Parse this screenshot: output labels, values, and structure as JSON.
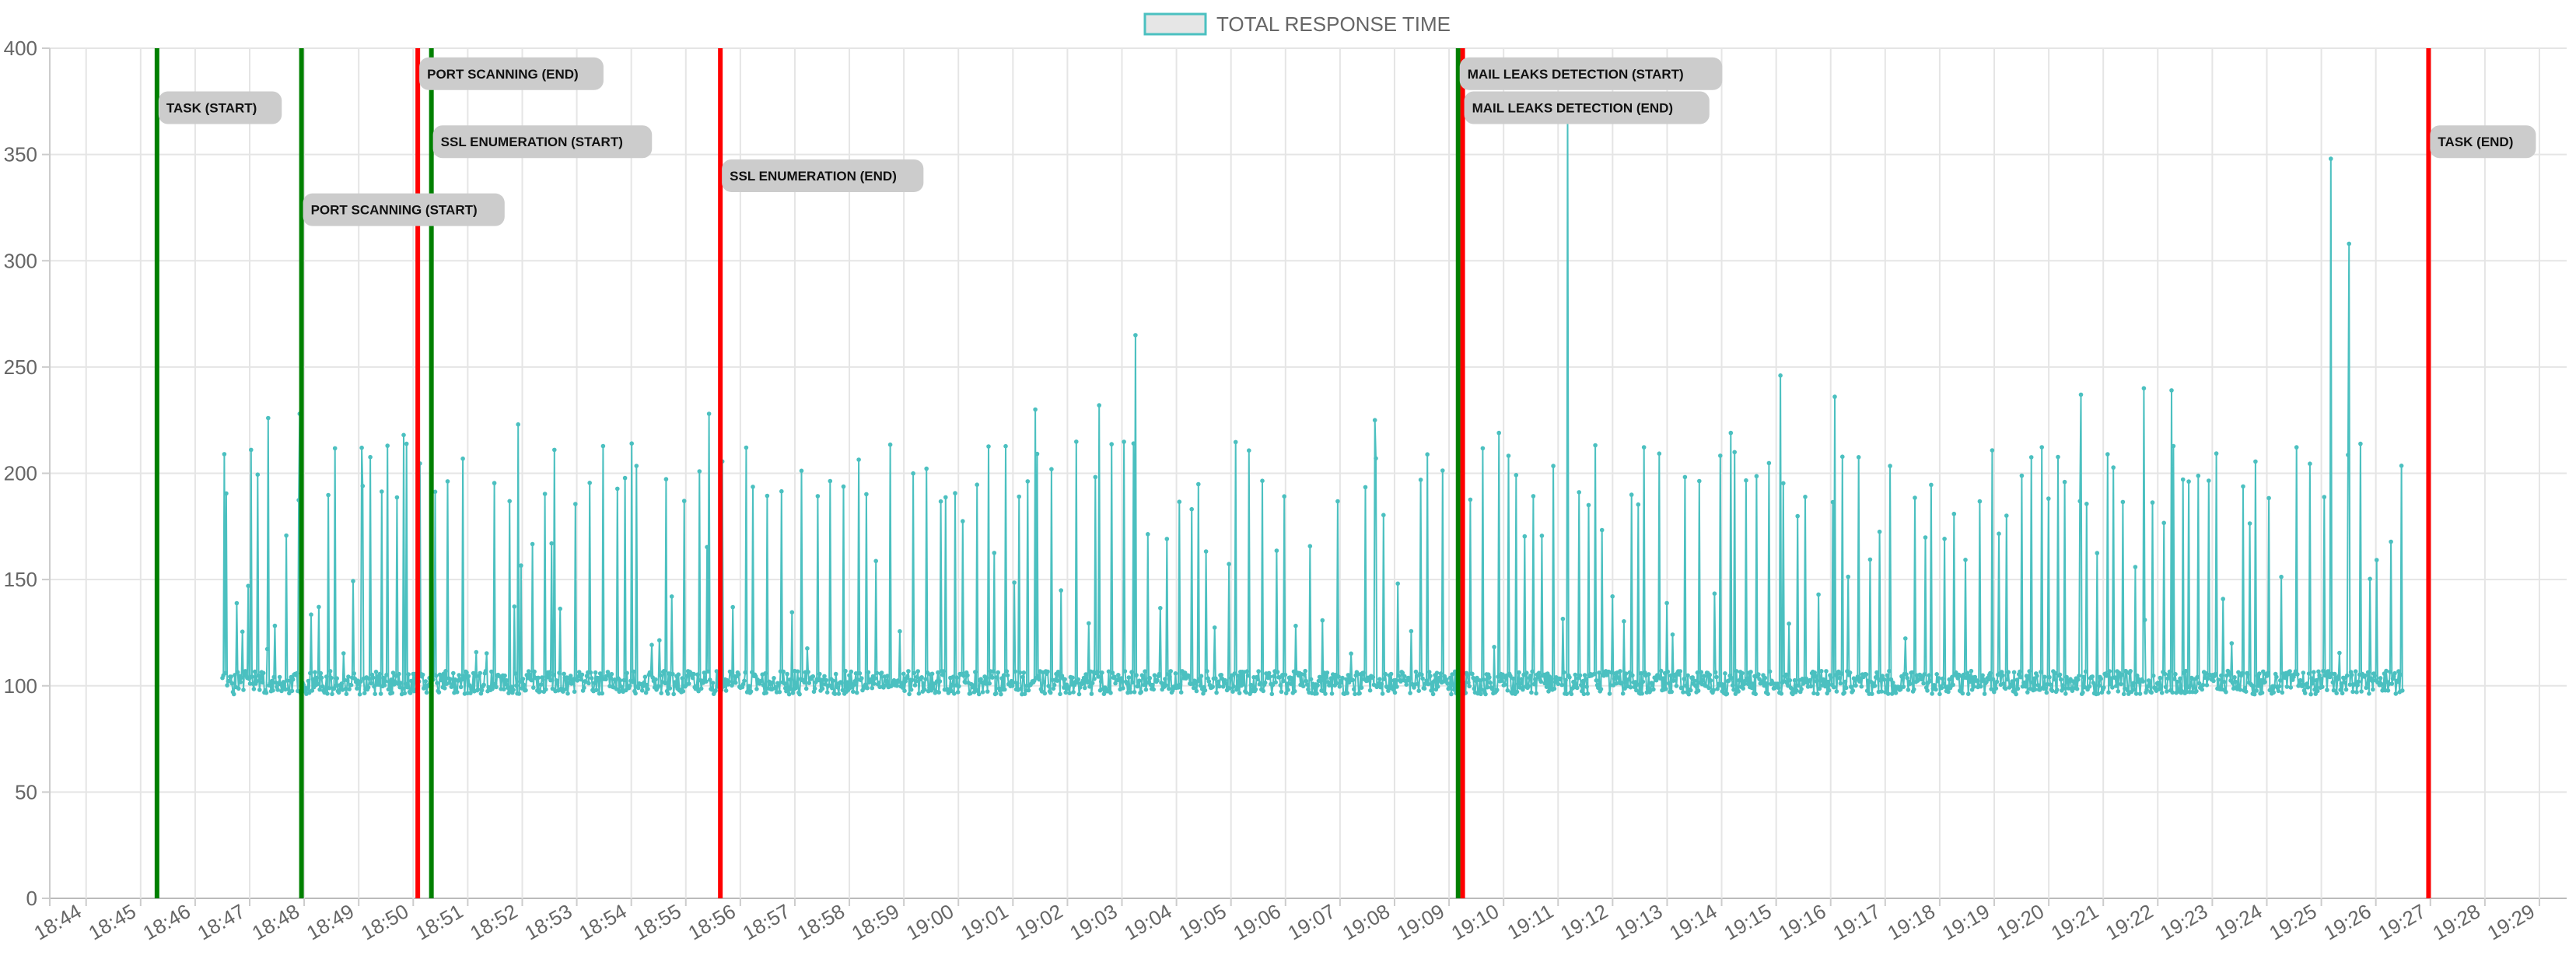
{
  "chart_data": {
    "type": "line",
    "title": "",
    "xlabel": "",
    "ylabel": "",
    "legend": {
      "position": "top-center",
      "entries": [
        {
          "label": "TOTAL RESPONSE TIME",
          "color": "#4bc0c0"
        }
      ]
    },
    "grid": true,
    "x_axis": {
      "type": "time",
      "range": [
        "18:43:20",
        "19:29:30"
      ],
      "ticks": [
        "18:44",
        "18:45",
        "18:46",
        "18:47",
        "18:48",
        "18:49",
        "18:50",
        "18:51",
        "18:52",
        "18:53",
        "18:54",
        "18:55",
        "18:56",
        "18:57",
        "18:58",
        "18:59",
        "19:00",
        "19:01",
        "19:02",
        "19:03",
        "19:04",
        "19:05",
        "19:06",
        "19:07",
        "19:08",
        "19:09",
        "19:10",
        "19:11",
        "19:12",
        "19:13",
        "19:14",
        "19:15",
        "19:16",
        "19:17",
        "19:18",
        "19:19",
        "19:20",
        "19:21",
        "19:22",
        "19:23",
        "19:24",
        "19:25",
        "19:26",
        "19:27",
        "19:28",
        "19:29"
      ]
    },
    "y_axis": {
      "range": [
        0,
        400
      ],
      "ticks": [
        "0",
        "50",
        "100",
        "150",
        "200",
        "250",
        "300",
        "350",
        "400"
      ]
    },
    "series": [
      {
        "name": "TOTAL RESPONSE TIME",
        "color": "#4bc0c0",
        "summary": {
          "start": "18:46:30",
          "end": "19:26:30",
          "baseline_min": 96,
          "baseline_max": 107,
          "typical_spike_min": 185,
          "typical_spike_max": 215
        },
        "peaks": [
          {
            "x": "18:46:32",
            "y": 209
          },
          {
            "x": "18:47:02",
            "y": 211
          },
          {
            "x": "18:47:20",
            "y": 226
          },
          {
            "x": "18:47:55",
            "y": 228
          },
          {
            "x": "18:49:03",
            "y": 212
          },
          {
            "x": "18:49:50",
            "y": 218
          },
          {
            "x": "18:51:55",
            "y": 223
          },
          {
            "x": "18:52:35",
            "y": 211
          },
          {
            "x": "18:54:00",
            "y": 214
          },
          {
            "x": "18:55:25",
            "y": 228
          },
          {
            "x": "19:01:25",
            "y": 230
          },
          {
            "x": "19:02:35",
            "y": 232
          },
          {
            "x": "19:03:15",
            "y": 265
          },
          {
            "x": "19:07:38",
            "y": 225
          },
          {
            "x": "19:09:55",
            "y": 219
          },
          {
            "x": "19:11:10",
            "y": 369
          },
          {
            "x": "19:14:10",
            "y": 219
          },
          {
            "x": "19:15:05",
            "y": 246
          },
          {
            "x": "19:16:05",
            "y": 236
          },
          {
            "x": "19:20:35",
            "y": 237
          },
          {
            "x": "19:21:45",
            "y": 240
          },
          {
            "x": "19:22:15",
            "y": 239
          },
          {
            "x": "19:25:10",
            "y": 348
          },
          {
            "x": "19:25:30",
            "y": 308
          }
        ]
      }
    ],
    "events": [
      {
        "label": "TASK (START)",
        "time": "18:45:18",
        "kind": "start",
        "color": "#008000",
        "label_y": 372
      },
      {
        "label": "PORT SCANNING (START)",
        "time": "18:47:57",
        "kind": "start",
        "color": "#008000",
        "label_y": 324
      },
      {
        "label": "PORT SCANNING (END)",
        "time": "18:50:05",
        "kind": "end",
        "color": "#ff0000",
        "label_y": 388
      },
      {
        "label": "SSL ENUMERATION (START)",
        "time": "18:50:20",
        "kind": "start",
        "color": "#008000",
        "label_y": 356
      },
      {
        "label": "SSL ENUMERATION (END)",
        "time": "18:55:38",
        "kind": "end",
        "color": "#ff0000",
        "label_y": 340
      },
      {
        "label": "MAIL LEAKS DETECTION (START)",
        "time": "19:09:10",
        "kind": "start",
        "color": "#008000",
        "label_y": 388
      },
      {
        "label": "MAIL LEAKS DETECTION (END)",
        "time": "19:09:15",
        "kind": "end",
        "color": "#ff0000",
        "label_y": 372
      },
      {
        "label": "TASK (END)",
        "time": "19:26:58",
        "kind": "end",
        "color": "#ff0000",
        "label_y": 356
      }
    ]
  }
}
